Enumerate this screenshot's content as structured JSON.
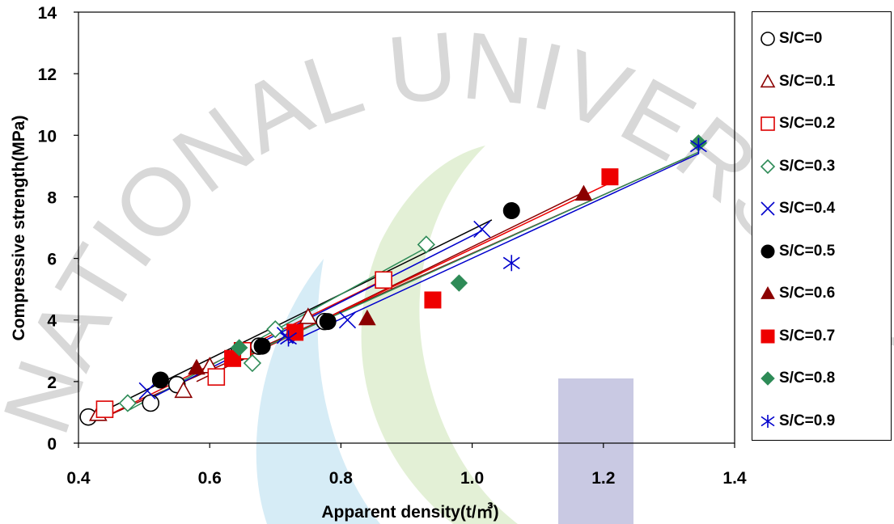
{
  "watermark": {
    "text": "NATIONAL UNIVERSITY"
  },
  "chart_data": {
    "type": "scatter",
    "xlabel": "Apparent density(t/㎥)",
    "ylabel": "Compressive strength(MPa)",
    "xlim": [
      0.4,
      1.4
    ],
    "ylim": [
      0,
      14
    ],
    "xticks": [
      "0.4",
      "0.6",
      "0.8",
      "1.0",
      "1.2",
      "1.4"
    ],
    "yticks": [
      "0",
      "2",
      "4",
      "6",
      "8",
      "10",
      "12",
      "14"
    ],
    "grid": false,
    "legend_position": "right",
    "series": [
      {
        "name": "S/C=0",
        "marker": "circle-open",
        "color": "#000000",
        "x": [
          0.415,
          0.51,
          0.55,
          0.645,
          0.675,
          0.775
        ],
        "y": [
          0.85,
          1.3,
          1.9,
          2.95,
          3.15,
          3.95
        ],
        "fit": [
          [
            0.415,
            0.8
          ],
          [
            1.03,
            7.25
          ]
        ]
      },
      {
        "name": "S/C=0.1",
        "marker": "triangle-open",
        "color": "#8b0000",
        "x": [
          0.43,
          0.56,
          0.6,
          0.75
        ],
        "y": [
          0.95,
          1.7,
          2.5,
          4.1
        ],
        "fit": [
          [
            0.43,
            0.75
          ],
          [
            1.33,
            9.3
          ]
        ]
      },
      {
        "name": "S/C=0.2",
        "marker": "square-open",
        "color": "#dd0000",
        "x": [
          0.44,
          0.61,
          0.65,
          0.865
        ],
        "y": [
          1.1,
          2.15,
          3.0,
          5.3
        ],
        "fit": [
          [
            0.44,
            0.85
          ],
          [
            0.865,
            5.3
          ]
        ]
      },
      {
        "name": "S/C=0.3",
        "marker": "diamond-open",
        "color": "#2e8b57",
        "x": [
          0.475,
          0.665,
          0.7,
          0.93
        ],
        "y": [
          1.3,
          2.6,
          3.7,
          6.45
        ],
        "fit": [
          [
            0.475,
            1.05
          ],
          [
            0.93,
            6.35
          ]
        ]
      },
      {
        "name": "S/C=0.4",
        "marker": "x",
        "color": "#0000cc",
        "x": [
          0.505,
          0.715,
          0.81,
          1.015
        ],
        "y": [
          1.7,
          3.5,
          4.0,
          6.95
        ],
        "fit": [
          [
            0.505,
            1.4
          ],
          [
            1.015,
            6.9
          ]
        ]
      },
      {
        "name": "S/C=0.5",
        "marker": "circle-filled",
        "color": "#000000",
        "x": [
          0.525,
          0.68,
          0.78,
          1.06
        ],
        "y": [
          2.05,
          3.15,
          3.95,
          7.55
        ],
        "fit": null
      },
      {
        "name": "S/C=0.6",
        "marker": "triangle-filled",
        "color": "#8b0000",
        "x": [
          0.58,
          0.84,
          1.17
        ],
        "y": [
          2.45,
          4.05,
          8.1
        ],
        "fit": [
          [
            0.58,
            2.0
          ],
          [
            1.17,
            8.15
          ]
        ]
      },
      {
        "name": "S/C=0.7",
        "marker": "square-filled",
        "color": "#ee0000",
        "x": [
          0.635,
          0.73,
          0.94,
          1.21
        ],
        "y": [
          2.75,
          3.6,
          4.65,
          8.65
        ],
        "fit": [
          [
            0.635,
            2.6
          ],
          [
            1.21,
            8.45
          ]
        ]
      },
      {
        "name": "S/C=0.8",
        "marker": "diamond-filled",
        "color": "#2e8b57",
        "x": [
          0.645,
          0.98,
          1.345
        ],
        "y": [
          3.1,
          5.2,
          9.75
        ],
        "fit": [
          [
            0.645,
            2.75
          ],
          [
            1.345,
            9.45
          ]
        ]
      },
      {
        "name": "S/C=0.9",
        "marker": "asterisk",
        "color": "#0000cc",
        "x": [
          0.72,
          1.06,
          1.345
        ],
        "y": [
          3.4,
          5.85,
          9.65
        ],
        "fit": [
          [
            0.72,
            3.25
          ],
          [
            1.345,
            9.4
          ]
        ]
      }
    ]
  }
}
